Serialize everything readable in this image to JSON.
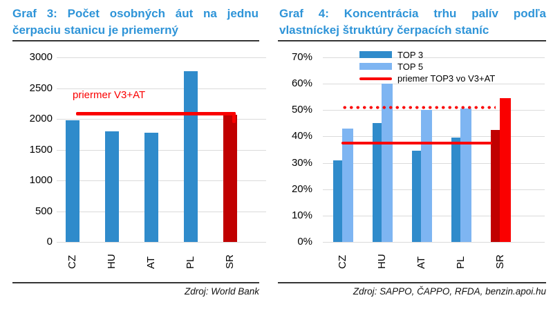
{
  "panels": [
    {
      "title": "Graf 3: Počet osobných áut na jednu čerpaciu stanicu je priemerný",
      "title_line1": "Graf 3: Počet osobných áut na jednu",
      "title_line2": "čerpaciu stanicu je priemerný",
      "source": "Zdroj: World Bank"
    },
    {
      "title": "Graf 4: Koncentrácia trhu palív podľa vlastníckej štruktúry čerpacích staníc",
      "title_line1": "Graf 4: Koncentrácia trhu palív podľa",
      "title_line2": "vlastníckej štruktúry čerpacích staníc",
      "source": "Zdroj: SAPPO, ČAPPO, RFDA, benzin.apoi.hu"
    }
  ],
  "colors": {
    "title_blue": "#2E94D8",
    "bar_blue": "#2F8BCB",
    "bar_light_blue": "#7EB5F2",
    "bar_dark_red": "#C00000",
    "bar_bright_red": "#FA0000",
    "ref_red": "#FA0000",
    "gridline": "#DADADA",
    "rule_dark": "#333333"
  },
  "chart_data": [
    {
      "type": "bar",
      "title": "Graf 3: Počet osobných áut na jednu čerpaciu stanicu je priemerný",
      "categories": [
        "CZ",
        "HU",
        "AT",
        "PL",
        "SR"
      ],
      "values": [
        1975,
        1800,
        1770,
        2780,
        2070
      ],
      "bar_colors": [
        "#2F8BCB",
        "#2F8BCB",
        "#2F8BCB",
        "#2F8BCB",
        "#C00000"
      ],
      "ylim": [
        0,
        3000
      ],
      "yticks": [
        0,
        500,
        1000,
        1500,
        2000,
        2500,
        3000
      ],
      "ytick_suffix": "",
      "grid": true,
      "legend": [],
      "ref_lines": [
        {
          "label": "priermer V3+AT",
          "value": 2085,
          "style": "solid",
          "color": "#FA0000"
        }
      ],
      "annotation": {
        "label": "priermer V3+AT",
        "color": "#FA0000"
      },
      "xlabel": "",
      "ylabel": "",
      "source": "Zdroj: World Bank"
    },
    {
      "type": "bar",
      "title": "Graf 4: Koncentrácia trhu palív podľa vlastníckej štruktúry čerpacích staníc",
      "categories": [
        "CZ",
        "HU",
        "AT",
        "PL",
        "SR"
      ],
      "series": [
        {
          "name": "TOP 3",
          "values": [
            31,
            45,
            34.5,
            39.5,
            42.5
          ],
          "colors": [
            "#2F8BCB",
            "#2F8BCB",
            "#2F8BCB",
            "#2F8BCB",
            "#C00000"
          ]
        },
        {
          "name": "TOP 5",
          "values": [
            43,
            60,
            50,
            50.5,
            54.5
          ],
          "colors": [
            "#7EB5F2",
            "#7EB5F2",
            "#7EB5F2",
            "#7EB5F2",
            "#FA0000"
          ]
        }
      ],
      "ylim": [
        0,
        70
      ],
      "yticks": [
        0,
        10,
        20,
        30,
        40,
        50,
        60,
        70
      ],
      "ytick_suffix": "%",
      "grid": true,
      "legend": [
        {
          "label": "TOP 3",
          "type": "bar",
          "color": "#2F8BCB"
        },
        {
          "label": "TOP 5",
          "type": "bar",
          "color": "#7EB5F2"
        },
        {
          "label": "priemer TOP3 vo V3+AT",
          "type": "line",
          "color": "#FA0000"
        }
      ],
      "legend_position": "top",
      "ref_lines": [
        {
          "label": "priemer TOP3 vo V3+AT",
          "value": 37.5,
          "style": "solid",
          "color": "#FA0000"
        },
        {
          "label": "",
          "value": 51,
          "style": "dotted",
          "color": "#FA0000"
        }
      ],
      "xlabel": "",
      "ylabel": "",
      "source": "Zdroj: SAPPO, ČAPPO, RFDA, benzin.apoi.hu"
    }
  ]
}
